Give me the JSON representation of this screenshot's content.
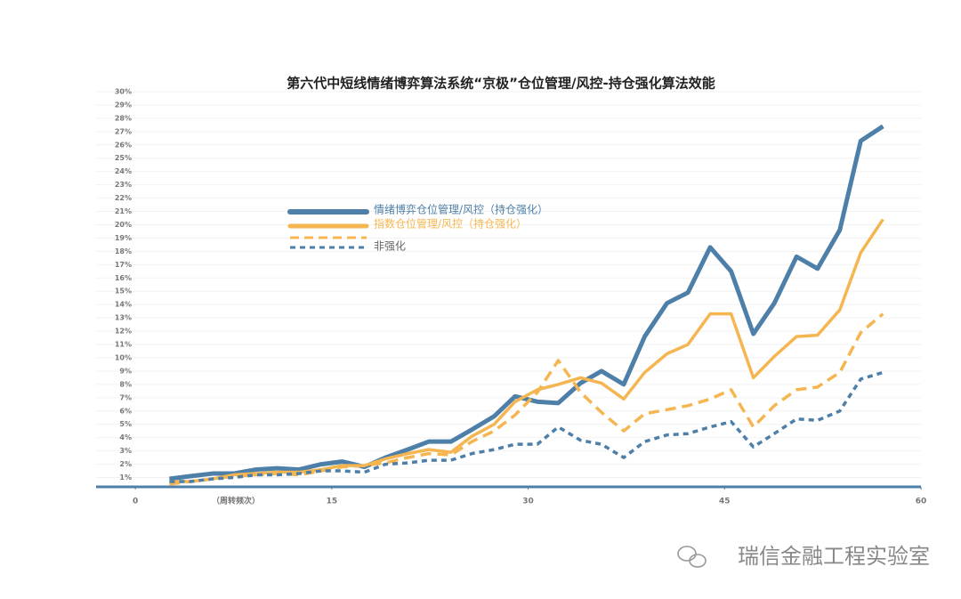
{
  "chart_data": {
    "type": "line",
    "title": "第六代中短线情绪博弈算法系统“京极”仓位管理/风控-持仓强化算法效能",
    "x_label": "（周转频次）",
    "watermark": "瑞信金融工程实验室",
    "x": [
      2.6,
      4.2,
      5.9,
      7.5,
      9.2,
      10.8,
      12.5,
      14.2,
      15.8,
      17.5,
      19.1,
      20.8,
      22.4,
      24.1,
      25.7,
      27.4,
      29.0,
      30.7,
      32.3,
      34.0,
      35.6,
      37.3,
      38.9,
      40.6,
      42.2,
      43.9,
      45.5,
      47.2,
      48.8,
      50.5,
      52.1,
      53.8,
      55.4,
      57.1
    ],
    "series": [
      {
        "name": "情绪博弈仓位管理/风控（持仓强化）",
        "color": "#4d7fa8",
        "dashed": false,
        "values": [
          0.9,
          1.1,
          1.3,
          1.3,
          1.6,
          1.7,
          1.6,
          2.0,
          2.2,
          1.8,
          2.5,
          3.1,
          3.7,
          3.7,
          4.6,
          5.6,
          7.1,
          6.7,
          6.6,
          8.1,
          9.0,
          8.0,
          11.6,
          14.1,
          14.9,
          18.3,
          16.5,
          11.8,
          14.1,
          17.6,
          16.7,
          19.6,
          26.3,
          27.4
        ]
      },
      {
        "name": "指数仓位管理/风控（持仓强化）",
        "color": "#f5b651",
        "dashed": false,
        "values": [
          0.7,
          0.7,
          0.9,
          1.2,
          1.3,
          1.4,
          1.4,
          1.6,
          1.9,
          1.9,
          2.4,
          2.8,
          3.1,
          2.9,
          4.1,
          5.0,
          6.7,
          7.6,
          8.0,
          8.5,
          8.1,
          6.9,
          8.9,
          10.3,
          11.0,
          13.3,
          13.3,
          8.5,
          10.1,
          11.6,
          11.7,
          13.6,
          17.9,
          20.4
        ]
      },
      {
        "name": null,
        "color": "#f5b651",
        "dashed": true,
        "values": [
          0.5,
          0.7,
          0.9,
          1.1,
          1.2,
          1.3,
          1.2,
          1.5,
          1.8,
          1.9,
          2.1,
          2.5,
          2.8,
          2.7,
          3.7,
          4.5,
          5.7,
          7.4,
          9.8,
          7.4,
          5.9,
          4.5,
          5.8,
          6.1,
          6.4,
          6.9,
          7.6,
          4.8,
          6.4,
          7.6,
          7.8,
          8.9,
          11.9,
          13.3
        ]
      },
      {
        "name": "非强化",
        "color": "#4d7fa8",
        "dashed": true,
        "values": [
          0.7,
          0.7,
          0.9,
          1.0,
          1.2,
          1.2,
          1.3,
          1.5,
          1.5,
          1.4,
          2.0,
          2.1,
          2.3,
          2.3,
          2.8,
          3.1,
          3.5,
          3.5,
          4.8,
          3.8,
          3.5,
          2.5,
          3.7,
          4.2,
          4.3,
          4.8,
          5.2,
          3.3,
          4.3,
          5.4,
          5.3,
          6.0,
          8.4,
          8.9
        ]
      }
    ],
    "xlim": [
      -3,
      60
    ],
    "xticks": [
      0,
      15,
      30,
      45,
      60
    ],
    "ylim": [
      0.3,
      30
    ],
    "yticks": [
      {
        "value": 1,
        "label": "1%"
      },
      {
        "value": 2,
        "label": "2%"
      },
      {
        "value": 3,
        "label": "3%"
      },
      {
        "value": 4,
        "label": "4%"
      },
      {
        "value": 5,
        "label": "5%"
      },
      {
        "value": 6,
        "label": "6%"
      },
      {
        "value": 7,
        "label": "7%"
      },
      {
        "value": 8,
        "label": "8%"
      },
      {
        "value": 9,
        "label": "9%"
      },
      {
        "value": 10,
        "label": "10%"
      },
      {
        "value": 11,
        "label": "11%"
      },
      {
        "value": 12,
        "label": "12%"
      },
      {
        "value": 13,
        "label": "13%"
      },
      {
        "value": 14,
        "label": "14%"
      },
      {
        "value": 15,
        "label": "15%"
      },
      {
        "value": 16,
        "label": "16%"
      },
      {
        "value": 17,
        "label": "17%"
      },
      {
        "value": 18,
        "label": "18%"
      },
      {
        "value": 19,
        "label": "19%"
      },
      {
        "value": 20,
        "label": "20%"
      },
      {
        "value": 21,
        "label": "21%"
      },
      {
        "value": 22,
        "label": "22%"
      },
      {
        "value": 23,
        "label": "23%"
      },
      {
        "value": 24,
        "label": "24%"
      },
      {
        "value": 25,
        "label": "25%"
      },
      {
        "value": 26,
        "label": "26%"
      },
      {
        "value": 27,
        "label": "27%"
      },
      {
        "value": 28,
        "label": "28%"
      },
      {
        "value": 29,
        "label": "29%"
      },
      {
        "value": 30,
        "label": "30%"
      }
    ],
    "grid": true
  }
}
